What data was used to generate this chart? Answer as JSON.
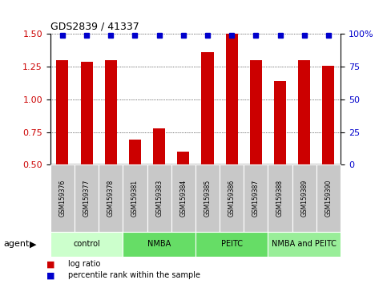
{
  "title": "GDS2839 / 41337",
  "samples": [
    "GSM159376",
    "GSM159377",
    "GSM159378",
    "GSM159381",
    "GSM159383",
    "GSM159384",
    "GSM159385",
    "GSM159386",
    "GSM159387",
    "GSM159388",
    "GSM159389",
    "GSM159390"
  ],
  "log_ratio": [
    1.3,
    1.29,
    1.3,
    0.69,
    0.78,
    0.6,
    1.36,
    1.5,
    1.3,
    1.14,
    1.3,
    1.26
  ],
  "percentile": [
    100,
    100,
    100,
    100,
    100,
    97,
    100,
    100,
    100,
    100,
    100,
    100
  ],
  "bar_color": "#cc0000",
  "dot_color": "#0000cc",
  "ylim_left": [
    0.5,
    1.5
  ],
  "ylim_right": [
    0,
    100
  ],
  "yticks_left": [
    0.5,
    0.75,
    1.0,
    1.25,
    1.5
  ],
  "yticks_right": [
    0,
    25,
    50,
    75,
    100
  ],
  "groups": [
    {
      "label": "control",
      "start": 0,
      "end": 3,
      "color": "#ccffcc"
    },
    {
      "label": "NMBA",
      "start": 3,
      "end": 6,
      "color": "#66dd66"
    },
    {
      "label": "PEITC",
      "start": 6,
      "end": 9,
      "color": "#66dd66"
    },
    {
      "label": "NMBA and PEITC",
      "start": 9,
      "end": 12,
      "color": "#99ee99"
    }
  ],
  "legend_items": [
    {
      "label": "log ratio",
      "color": "#cc0000"
    },
    {
      "label": "percentile rank within the sample",
      "color": "#0000cc"
    }
  ],
  "bar_color_left_axis": "#cc0000",
  "right_axis_color": "#0000cc",
  "sample_box_color": "#c8c8c8",
  "agent_label": "agent"
}
